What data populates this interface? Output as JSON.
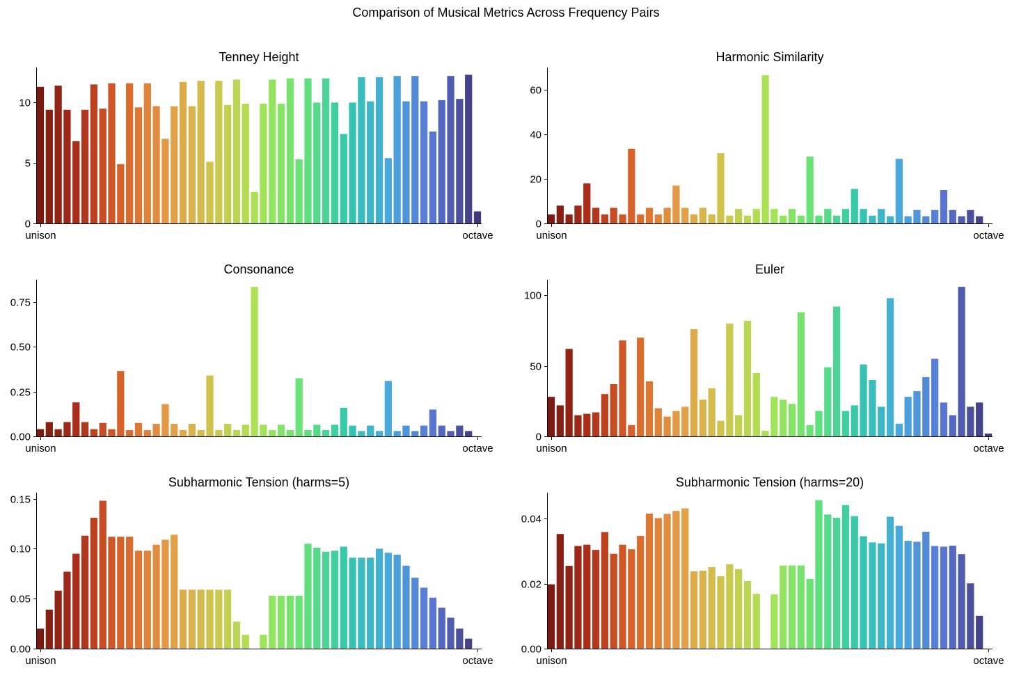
{
  "figure": {
    "title": "Comparison of Musical Metrics Across Frequency Pairs"
  },
  "chart_data": [
    {
      "type": "bar",
      "title": "Tenney Height",
      "xlabel": "",
      "ylabel": "",
      "xtick_labels": [
        "unison",
        "octave"
      ],
      "ylim": [
        0,
        12.9
      ],
      "yticks": [
        0,
        5,
        10
      ],
      "ytick_labels": [
        "0",
        "5",
        "10"
      ],
      "grid": false,
      "legend": "none",
      "values": [
        11.3,
        9.4,
        11.4,
        9.4,
        6.8,
        9.4,
        11.5,
        9.5,
        11.6,
        4.9,
        11.6,
        9.6,
        11.6,
        9.7,
        7.0,
        9.7,
        11.7,
        9.7,
        11.8,
        5.1,
        11.8,
        9.8,
        11.9,
        9.9,
        2.6,
        9.9,
        11.9,
        9.9,
        12.0,
        5.3,
        12.0,
        10.0,
        12.0,
        10.0,
        7.4,
        10.0,
        12.1,
        10.1,
        12.1,
        5.4,
        12.2,
        10.1,
        12.2,
        10.1,
        7.6,
        10.2,
        12.2,
        10.3,
        12.3,
        1.0
      ]
    },
    {
      "type": "bar",
      "title": "Harmonic Similarity",
      "xlabel": "",
      "ylabel": "",
      "xtick_labels": [
        "unison",
        "octave"
      ],
      "ylim": [
        0,
        70
      ],
      "yticks": [
        0,
        20,
        40,
        60
      ],
      "ytick_labels": [
        "0",
        "20",
        "40",
        "60"
      ],
      "grid": false,
      "legend": "none",
      "values": [
        4,
        8,
        4,
        8,
        18,
        7,
        4,
        7,
        4,
        33.5,
        4,
        7,
        4,
        7,
        17,
        7,
        4,
        7,
        4,
        31.5,
        3.5,
        6.5,
        3.5,
        6.5,
        66.5,
        6.5,
        3.5,
        6.5,
        3.5,
        30,
        3.5,
        6.5,
        3.5,
        6.5,
        15.5,
        6.5,
        3.5,
        6.5,
        3.2,
        29,
        3.2,
        6,
        3.2,
        6,
        15,
        6,
        3.2,
        6,
        3.2,
        0
      ]
    },
    {
      "type": "bar",
      "title": "Consonance",
      "xlabel": "",
      "ylabel": "",
      "xtick_labels": [
        "unison",
        "octave"
      ],
      "ylim": [
        0,
        0.875
      ],
      "yticks": [
        0,
        0.25,
        0.5,
        0.75
      ],
      "ytick_labels": [
        "0.00",
        "0.25",
        "0.50",
        "0.75"
      ],
      "grid": false,
      "legend": "none",
      "values": [
        0.04,
        0.08,
        0.04,
        0.08,
        0.19,
        0.08,
        0.04,
        0.075,
        0.04,
        0.365,
        0.035,
        0.075,
        0.035,
        0.07,
        0.18,
        0.07,
        0.035,
        0.07,
        0.035,
        0.34,
        0.035,
        0.07,
        0.035,
        0.065,
        0.835,
        0.065,
        0.035,
        0.065,
        0.035,
        0.325,
        0.035,
        0.065,
        0.035,
        0.065,
        0.16,
        0.06,
        0.03,
        0.06,
        0.03,
        0.31,
        0.03,
        0.06,
        0.03,
        0.06,
        0.15,
        0.06,
        0.03,
        0.06,
        0.03,
        0
      ]
    },
    {
      "type": "bar",
      "title": "Euler",
      "xlabel": "",
      "ylabel": "",
      "xtick_labels": [
        "unison",
        "octave"
      ],
      "ylim": [
        0,
        111
      ],
      "yticks": [
        0,
        50,
        100
      ],
      "ytick_labels": [
        "0",
        "50",
        "100"
      ],
      "grid": false,
      "legend": "none",
      "values": [
        28,
        22,
        62,
        15,
        16,
        17,
        30,
        37,
        68,
        8,
        70,
        39,
        20,
        14,
        18,
        21,
        76,
        26,
        34,
        11,
        80,
        15,
        82,
        45,
        4,
        28,
        26,
        23,
        88,
        8,
        18,
        49,
        92,
        18,
        22,
        51,
        40,
        21,
        98,
        9,
        28,
        32,
        42,
        55,
        24,
        15,
        106,
        21,
        24,
        2
      ]
    },
    {
      "type": "bar",
      "title": "Subharmonic Tension (harms=5)",
      "xlabel": "",
      "ylabel": "",
      "xtick_labels": [
        "unison",
        "octave"
      ],
      "ylim": [
        0,
        0.156
      ],
      "yticks": [
        0,
        0.05,
        0.1,
        0.15
      ],
      "ytick_labels": [
        "0.00",
        "0.05",
        "0.10",
        "0.15"
      ],
      "grid": false,
      "legend": "none",
      "values": [
        0.02,
        0.039,
        0.058,
        0.077,
        0.095,
        0.113,
        0.131,
        0.148,
        0.112,
        0.112,
        0.112,
        0.098,
        0.098,
        0.104,
        0.109,
        0.114,
        0.059,
        0.059,
        0.059,
        0.059,
        0.059,
        0.059,
        0.027,
        0.014,
        0,
        0.014,
        0.053,
        0.053,
        0.053,
        0.053,
        0.105,
        0.101,
        0.097,
        0.098,
        0.102,
        0.091,
        0.091,
        0.091,
        0.1,
        0.096,
        0.094,
        0.083,
        0.071,
        0.061,
        0.051,
        0.041,
        0.031,
        0.02,
        0.01,
        0
      ]
    },
    {
      "type": "bar",
      "title": "Subharmonic Tension (harms=20)",
      "xlabel": "",
      "ylabel": "",
      "xtick_labels": [
        "unison",
        "octave"
      ],
      "ylim": [
        0,
        0.048
      ],
      "yticks": [
        0,
        0.02,
        0.04
      ],
      "ytick_labels": [
        "0.00",
        "0.02",
        "0.04"
      ],
      "grid": false,
      "legend": "none",
      "values": [
        0.0198,
        0.0353,
        0.0255,
        0.0316,
        0.032,
        0.0304,
        0.0359,
        0.0292,
        0.032,
        0.0306,
        0.0347,
        0.0416,
        0.0402,
        0.0415,
        0.0424,
        0.0432,
        0.0238,
        0.024,
        0.0251,
        0.0223,
        0.026,
        0.0245,
        0.0208,
        0.0169,
        0,
        0.0167,
        0.0256,
        0.0256,
        0.0256,
        0.0215,
        0.0457,
        0.0413,
        0.0403,
        0.0442,
        0.0408,
        0.0346,
        0.0327,
        0.0324,
        0.0406,
        0.0378,
        0.0332,
        0.0329,
        0.036,
        0.0316,
        0.0314,
        0.0317,
        0.0291,
        0.0201,
        0.0101,
        0
      ]
    }
  ]
}
